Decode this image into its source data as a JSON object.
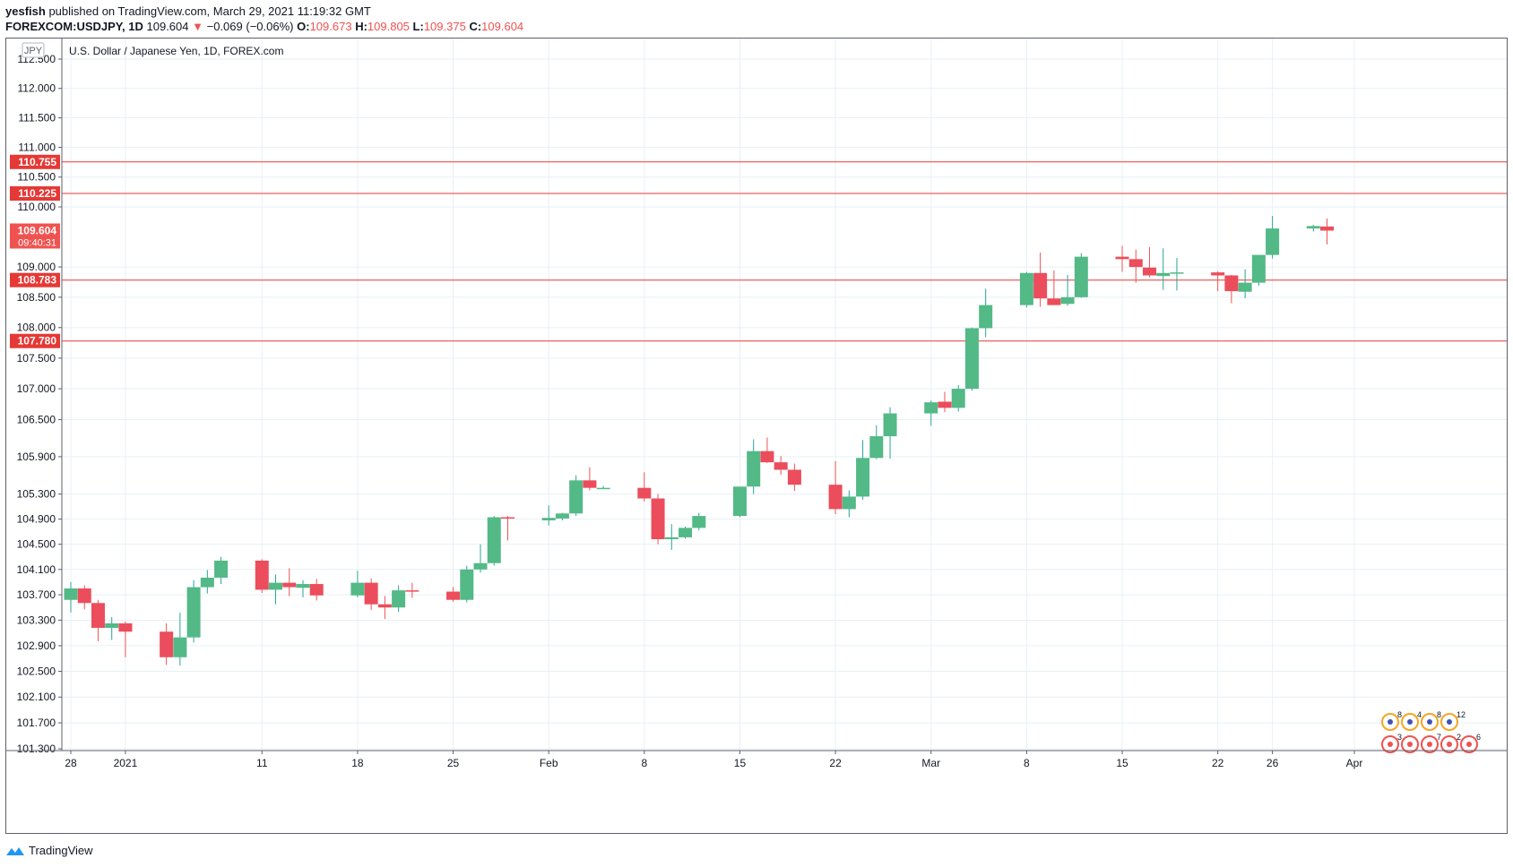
{
  "header": {
    "author": "yesfish",
    "published_text": "published on TradingView.com, March 29, 2021 11:19:32 GMT",
    "symbol": "FOREXCOM:USDJPY, 1D",
    "last": "109.604",
    "change": "−0.069 (−0.06%)",
    "o_label": "O:",
    "o_value": "109.673",
    "h_label": "H:",
    "h_value": "109.805",
    "l_label": "L:",
    "l_value": "109.375",
    "c_label": "C:",
    "c_value": "109.604"
  },
  "footer": {
    "brand": "TradingView"
  },
  "colors": {
    "up": "#26a69a",
    "up_body": "#53b987",
    "down": "#ef5350",
    "down_body": "#eb4d5c",
    "level": "#e53935",
    "grid": "#e8f0f5"
  },
  "chart_data": {
    "type": "candlestick",
    "title": "U.S. Dollar / Japanese Yen, 1D, FOREX.com",
    "currency_label": "JPY",
    "scale": "log",
    "ylim": [
      101.2,
      112.7
    ],
    "y_ticks": [
      "101.300",
      "101.700",
      "102.100",
      "102.500",
      "102.900",
      "103.300",
      "103.700",
      "104.100",
      "104.500",
      "104.900",
      "105.300",
      "105.900",
      "106.500",
      "107.000",
      "107.500",
      "108.000",
      "108.500",
      "109.000",
      "110.000",
      "110.500",
      "111.000",
      "111.500",
      "112.000",
      "112.500"
    ],
    "x_ticks": [
      {
        "label": "28",
        "date": "2020-12-28"
      },
      {
        "label": "2021",
        "date": "2021-01-01"
      },
      {
        "label": "11",
        "date": "2021-01-11"
      },
      {
        "label": "18",
        "date": "2021-01-18"
      },
      {
        "label": "25",
        "date": "2021-01-25"
      },
      {
        "label": "Feb",
        "date": "2021-02-01"
      },
      {
        "label": "8",
        "date": "2021-02-08"
      },
      {
        "label": "15",
        "date": "2021-02-15"
      },
      {
        "label": "22",
        "date": "2021-02-22"
      },
      {
        "label": "Mar",
        "date": "2021-03-01"
      },
      {
        "label": "8",
        "date": "2021-03-08"
      },
      {
        "label": "15",
        "date": "2021-03-15"
      },
      {
        "label": "22",
        "date": "2021-03-22"
      },
      {
        "label": "26",
        "date": "2021-03-26"
      },
      {
        "label": "Apr",
        "date": "2021-04-01"
      }
    ],
    "levels": [
      {
        "value": 110.755,
        "label": "110.755"
      },
      {
        "value": 110.225,
        "label": "110.225"
      },
      {
        "value": 108.783,
        "label": "108.783"
      },
      {
        "value": 107.78,
        "label": "107.780"
      }
    ],
    "last_price": {
      "value": 109.604,
      "label": "109.604",
      "countdown": "09:40:31"
    },
    "candles": [
      {
        "date": "2020-12-28",
        "o": 103.62,
        "h": 103.9,
        "l": 103.42,
        "c": 103.8
      },
      {
        "date": "2020-12-29",
        "o": 103.8,
        "h": 103.85,
        "l": 103.47,
        "c": 103.57
      },
      {
        "date": "2020-12-30",
        "o": 103.57,
        "h": 103.62,
        "l": 102.97,
        "c": 103.18
      },
      {
        "date": "2020-12-31",
        "o": 103.18,
        "h": 103.35,
        "l": 102.99,
        "c": 103.25
      },
      {
        "date": "2021-01-01",
        "o": 103.25,
        "h": 103.28,
        "l": 102.72,
        "c": 103.12
      },
      {
        "date": "2021-01-04",
        "o": 103.12,
        "h": 103.25,
        "l": 102.6,
        "c": 102.72
      },
      {
        "date": "2021-01-05",
        "o": 102.72,
        "h": 103.42,
        "l": 102.59,
        "c": 103.03
      },
      {
        "date": "2021-01-06",
        "o": 103.03,
        "h": 103.93,
        "l": 102.95,
        "c": 103.82
      },
      {
        "date": "2021-01-07",
        "o": 103.82,
        "h": 104.09,
        "l": 103.72,
        "c": 103.97
      },
      {
        "date": "2021-01-08",
        "o": 103.97,
        "h": 104.3,
        "l": 103.87,
        "c": 104.24
      },
      {
        "date": "2021-01-11",
        "o": 104.24,
        "h": 104.26,
        "l": 103.73,
        "c": 103.78
      },
      {
        "date": "2021-01-12",
        "o": 103.78,
        "h": 104.02,
        "l": 103.55,
        "c": 103.89
      },
      {
        "date": "2021-01-13",
        "o": 103.89,
        "h": 104.12,
        "l": 103.68,
        "c": 103.82
      },
      {
        "date": "2021-01-14",
        "o": 103.81,
        "h": 103.93,
        "l": 103.66,
        "c": 103.87
      },
      {
        "date": "2021-01-15",
        "o": 103.87,
        "h": 103.95,
        "l": 103.61,
        "c": 103.69
      },
      {
        "date": "2021-01-18",
        "o": 103.69,
        "h": 104.08,
        "l": 103.66,
        "c": 103.89
      },
      {
        "date": "2021-01-19",
        "o": 103.89,
        "h": 103.96,
        "l": 103.46,
        "c": 103.55
      },
      {
        "date": "2021-01-20",
        "o": 103.55,
        "h": 103.68,
        "l": 103.32,
        "c": 103.5
      },
      {
        "date": "2021-01-21",
        "o": 103.5,
        "h": 103.85,
        "l": 103.43,
        "c": 103.77
      },
      {
        "date": "2021-01-22",
        "o": 103.77,
        "h": 103.89,
        "l": 103.65,
        "c": 103.75
      },
      {
        "date": "2021-01-25",
        "o": 103.75,
        "h": 103.82,
        "l": 103.59,
        "c": 103.62
      },
      {
        "date": "2021-01-26",
        "o": 103.62,
        "h": 104.16,
        "l": 103.58,
        "c": 104.1
      },
      {
        "date": "2021-01-27",
        "o": 104.1,
        "h": 104.5,
        "l": 104.05,
        "c": 104.2
      },
      {
        "date": "2021-01-28",
        "o": 104.2,
        "h": 104.95,
        "l": 104.16,
        "c": 104.93
      },
      {
        "date": "2021-01-29",
        "o": 104.93,
        "h": 104.95,
        "l": 104.56,
        "c": 104.91
      },
      {
        "date": "2021-02-01",
        "o": 104.88,
        "h": 105.12,
        "l": 104.8,
        "c": 104.92
      },
      {
        "date": "2021-02-02",
        "o": 104.91,
        "h": 105.0,
        "l": 104.88,
        "c": 104.99
      },
      {
        "date": "2021-02-03",
        "o": 104.99,
        "h": 105.6,
        "l": 104.95,
        "c": 105.52
      },
      {
        "date": "2021-02-04",
        "o": 105.52,
        "h": 105.73,
        "l": 105.36,
        "c": 105.4
      },
      {
        "date": "2021-02-05",
        "o": 105.39,
        "h": 105.43,
        "l": 105.38,
        "c": 105.4
      },
      {
        "date": "2021-02-08",
        "o": 105.4,
        "h": 105.65,
        "l": 105.18,
        "c": 105.23
      },
      {
        "date": "2021-02-09",
        "o": 105.23,
        "h": 105.3,
        "l": 104.5,
        "c": 104.58
      },
      {
        "date": "2021-02-10",
        "o": 104.58,
        "h": 104.82,
        "l": 104.41,
        "c": 104.61
      },
      {
        "date": "2021-02-11",
        "o": 104.61,
        "h": 104.78,
        "l": 104.59,
        "c": 104.76
      },
      {
        "date": "2021-02-12",
        "o": 104.76,
        "h": 105.0,
        "l": 104.72,
        "c": 104.95
      },
      {
        "date": "2021-02-15",
        "o": 104.95,
        "h": 105.4,
        "l": 104.93,
        "c": 105.42
      },
      {
        "date": "2021-02-16",
        "o": 105.42,
        "h": 106.18,
        "l": 105.3,
        "c": 105.99
      },
      {
        "date": "2021-02-17",
        "o": 105.99,
        "h": 106.21,
        "l": 105.8,
        "c": 105.81
      },
      {
        "date": "2021-02-18",
        "o": 105.81,
        "h": 105.91,
        "l": 105.61,
        "c": 105.69
      },
      {
        "date": "2021-02-19",
        "o": 105.69,
        "h": 105.79,
        "l": 105.35,
        "c": 105.45
      },
      {
        "date": "2021-02-22",
        "o": 105.45,
        "h": 105.83,
        "l": 104.98,
        "c": 105.06
      },
      {
        "date": "2021-02-23",
        "o": 105.06,
        "h": 105.36,
        "l": 104.93,
        "c": 105.26
      },
      {
        "date": "2021-02-24",
        "o": 105.26,
        "h": 106.17,
        "l": 105.21,
        "c": 105.88
      },
      {
        "date": "2021-02-25",
        "o": 105.88,
        "h": 106.41,
        "l": 105.86,
        "c": 106.23
      },
      {
        "date": "2021-02-26",
        "o": 106.23,
        "h": 106.7,
        "l": 105.87,
        "c": 106.6
      },
      {
        "date": "2021-03-01",
        "o": 106.6,
        "h": 106.81,
        "l": 106.4,
        "c": 106.78
      },
      {
        "date": "2021-03-02",
        "o": 106.79,
        "h": 106.95,
        "l": 106.62,
        "c": 106.69
      },
      {
        "date": "2021-03-03",
        "o": 106.69,
        "h": 107.06,
        "l": 106.63,
        "c": 107.0
      },
      {
        "date": "2021-03-04",
        "o": 107.0,
        "h": 108.0,
        "l": 106.97,
        "c": 107.99
      },
      {
        "date": "2021-03-05",
        "o": 107.99,
        "h": 108.64,
        "l": 107.84,
        "c": 108.37
      },
      {
        "date": "2021-03-08",
        "o": 108.37,
        "h": 108.92,
        "l": 108.33,
        "c": 108.9
      },
      {
        "date": "2021-03-09",
        "o": 108.9,
        "h": 109.24,
        "l": 108.34,
        "c": 108.48
      },
      {
        "date": "2021-03-10",
        "o": 108.48,
        "h": 108.94,
        "l": 108.37,
        "c": 108.37
      },
      {
        "date": "2021-03-11",
        "o": 108.39,
        "h": 108.87,
        "l": 108.36,
        "c": 108.5
      },
      {
        "date": "2021-03-12",
        "o": 108.5,
        "h": 109.23,
        "l": 108.49,
        "c": 109.17
      },
      {
        "date": "2021-03-15",
        "o": 109.17,
        "h": 109.35,
        "l": 108.92,
        "c": 109.13
      },
      {
        "date": "2021-03-16",
        "o": 109.13,
        "h": 109.29,
        "l": 108.74,
        "c": 109.0
      },
      {
        "date": "2021-03-17",
        "o": 108.99,
        "h": 109.33,
        "l": 108.83,
        "c": 108.86
      },
      {
        "date": "2021-03-18",
        "o": 108.85,
        "h": 109.31,
        "l": 108.62,
        "c": 108.9
      },
      {
        "date": "2021-03-19",
        "o": 108.9,
        "h": 109.15,
        "l": 108.61,
        "c": 108.91
      },
      {
        "date": "2021-03-22",
        "o": 108.91,
        "h": 108.93,
        "l": 108.6,
        "c": 108.86
      },
      {
        "date": "2021-03-23",
        "o": 108.86,
        "h": 108.87,
        "l": 108.4,
        "c": 108.6
      },
      {
        "date": "2021-03-24",
        "o": 108.59,
        "h": 108.96,
        "l": 108.48,
        "c": 108.74
      },
      {
        "date": "2021-03-25",
        "o": 108.74,
        "h": 109.2,
        "l": 108.69,
        "c": 109.2
      },
      {
        "date": "2021-03-26",
        "o": 109.2,
        "h": 109.85,
        "l": 109.14,
        "c": 109.64
      },
      {
        "date": "2021-03-29",
        "o": 109.64,
        "h": 109.7,
        "l": 109.59,
        "c": 109.68
      },
      {
        "date": "2021-03-30",
        "o": 109.673,
        "h": 109.805,
        "l": 109.375,
        "c": 109.604
      }
    ],
    "events": [
      {
        "row": 1,
        "label": "8"
      },
      {
        "row": 1,
        "label": "4"
      },
      {
        "row": 1,
        "label": "8"
      },
      {
        "row": 1,
        "label": "12"
      },
      {
        "row": 2,
        "label": "3"
      },
      {
        "row": 2,
        "label": ""
      },
      {
        "row": 2,
        "label": "7"
      },
      {
        "row": 2,
        "label": "2"
      },
      {
        "row": 2,
        "label": "6"
      }
    ]
  }
}
